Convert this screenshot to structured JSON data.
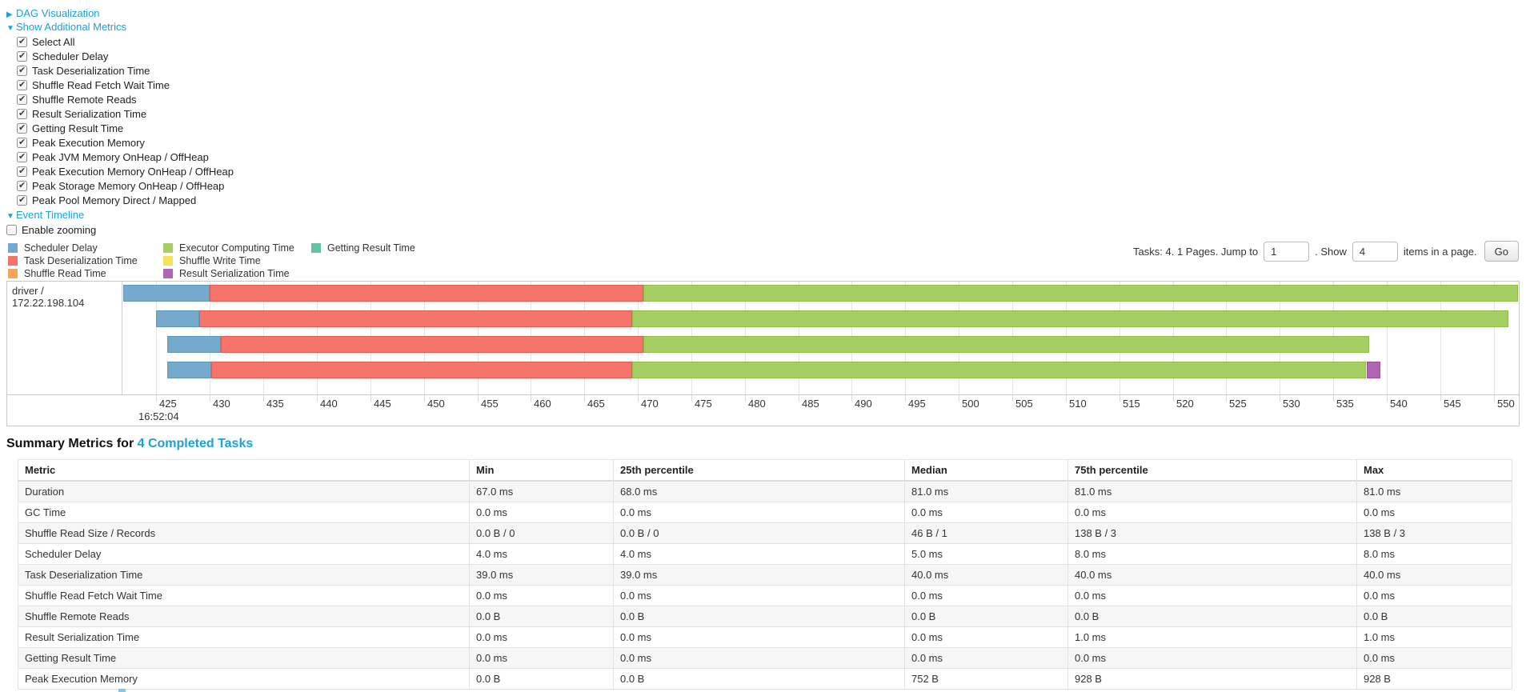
{
  "panel": {
    "dag_link": "DAG Visualization",
    "metrics_link": "Show Additional Metrics",
    "timeline_link": "Event Timeline",
    "enable_zooming_label": "Enable zooming",
    "metric_checkboxes": [
      "Select All",
      "Scheduler Delay",
      "Task Deserialization Time",
      "Shuffle Read Fetch Wait Time",
      "Shuffle Remote Reads",
      "Result Serialization Time",
      "Getting Result Time",
      "Peak Execution Memory",
      "Peak JVM Memory OnHeap / OffHeap",
      "Peak Execution Memory OnHeap / OffHeap",
      "Peak Storage Memory OnHeap / OffHeap",
      "Peak Pool Memory Direct / Mapped"
    ]
  },
  "pagination": {
    "tasks_text": "Tasks: 4. 1 Pages. Jump to",
    "jump_value": "1",
    "show_text": ". Show",
    "show_value": "4",
    "items_text": "items in a page.",
    "go_label": "Go"
  },
  "legend_columns": [
    {
      "items": [
        {
          "name": "scheduler_delay",
          "label": "Scheduler Delay"
        },
        {
          "name": "task_deserialization",
          "label": "Task Deserialization Time"
        },
        {
          "name": "shuffle_read",
          "label": "Shuffle Read Time"
        }
      ]
    },
    {
      "items": [
        {
          "name": "executor_computing",
          "label": "Executor Computing Time"
        },
        {
          "name": "shuffle_write",
          "label": "Shuffle Write Time"
        },
        {
          "name": "result_serialization",
          "label": "Result Serialization Time"
        }
      ]
    },
    {
      "items": [
        {
          "name": "getting_result",
          "label": "Getting Result Time"
        }
      ]
    }
  ],
  "chart_data": {
    "type": "timeline-gantt",
    "row_label": "driver / 172.22.198.104",
    "axis": {
      "min": 421.9,
      "max": 552.35,
      "tick_start": 425,
      "tick_end": 550,
      "tick_step": 5,
      "time_label": "16:52:04",
      "unit": "ms within second 16:52:04"
    },
    "colors": {
      "scheduler_delay": {
        "fill": "#76aacd",
        "border": "#5e96bd"
      },
      "task_deserialization": {
        "fill": "#f4736b",
        "border": "#e25c54"
      },
      "shuffle_read": {
        "fill": "#f6a45c",
        "border": "#e18b3e"
      },
      "executor_computing": {
        "fill": "#a5cf62",
        "border": "#8fbc48"
      },
      "shuffle_write": {
        "fill": "#f2e35b",
        "border": "#dccb3e"
      },
      "result_serialization": {
        "fill": "#af66b2",
        "border": "#964f99"
      },
      "getting_result": {
        "fill": "#62c2a2",
        "border": "#47a886"
      }
    },
    "tasks": [
      {
        "segments": [
          {
            "name": "scheduler_delay",
            "start": 421.9,
            "end": 430.0
          },
          {
            "name": "task_deserialization",
            "start": 430.0,
            "end": 470.5
          },
          {
            "name": "executor_computing",
            "start": 470.5,
            "end": 552.3
          }
        ]
      },
      {
        "segments": [
          {
            "name": "scheduler_delay",
            "start": 425.0,
            "end": 429.0
          },
          {
            "name": "task_deserialization",
            "start": 429.0,
            "end": 469.5
          },
          {
            "name": "executor_computing",
            "start": 469.5,
            "end": 551.4
          }
        ]
      },
      {
        "segments": [
          {
            "name": "scheduler_delay",
            "start": 426.0,
            "end": 431.0
          },
          {
            "name": "task_deserialization",
            "start": 431.0,
            "end": 470.5
          },
          {
            "name": "executor_computing",
            "start": 470.5,
            "end": 538.4
          }
        ]
      },
      {
        "segments": [
          {
            "name": "scheduler_delay",
            "start": 426.0,
            "end": 430.1
          },
          {
            "name": "task_deserialization",
            "start": 430.1,
            "end": 469.5
          },
          {
            "name": "executor_computing",
            "start": 469.5,
            "end": 538.1
          },
          {
            "name": "result_serialization",
            "start": 538.1,
            "end": 539.4
          }
        ]
      }
    ]
  },
  "summary": {
    "title_prefix": "Summary Metrics for ",
    "title_link": "4 Completed Tasks",
    "columns": [
      "Metric",
      "Min",
      "25th percentile",
      "Median",
      "75th percentile",
      "Max"
    ],
    "rows": [
      {
        "metric": "Duration",
        "values": [
          "67.0 ms",
          "68.0 ms",
          "81.0 ms",
          "81.0 ms",
          "81.0 ms"
        ]
      },
      {
        "metric": "GC Time",
        "values": [
          "0.0 ms",
          "0.0 ms",
          "0.0 ms",
          "0.0 ms",
          "0.0 ms"
        ]
      },
      {
        "metric": "Shuffle Read Size / Records",
        "values": [
          "0.0 B / 0",
          "0.0 B / 0",
          "46 B / 1",
          "138 B / 3",
          "138 B / 3"
        ]
      },
      {
        "metric": "Scheduler Delay",
        "values": [
          "4.0 ms",
          "4.0 ms",
          "5.0 ms",
          "8.0 ms",
          "8.0 ms"
        ]
      },
      {
        "metric": "Task Deserialization Time",
        "values": [
          "39.0 ms",
          "39.0 ms",
          "40.0 ms",
          "40.0 ms",
          "40.0 ms"
        ]
      },
      {
        "metric": "Shuffle Read Fetch Wait Time",
        "values": [
          "0.0 ms",
          "0.0 ms",
          "0.0 ms",
          "0.0 ms",
          "0.0 ms"
        ]
      },
      {
        "metric": "Shuffle Remote Reads",
        "values": [
          "0.0 B",
          "0.0 B",
          "0.0 B",
          "0.0 B",
          "0.0 B"
        ]
      },
      {
        "metric": "Result Serialization Time",
        "values": [
          "0.0 ms",
          "0.0 ms",
          "0.0 ms",
          "1.0 ms",
          "1.0 ms"
        ]
      },
      {
        "metric": "Getting Result Time",
        "values": [
          "0.0 ms",
          "0.0 ms",
          "0.0 ms",
          "0.0 ms",
          "0.0 ms"
        ]
      },
      {
        "metric": "Peak Execution Memory",
        "values": [
          "0.0 B",
          "0.0 B",
          "752 B",
          "928 B",
          "928 B"
        ]
      }
    ]
  }
}
